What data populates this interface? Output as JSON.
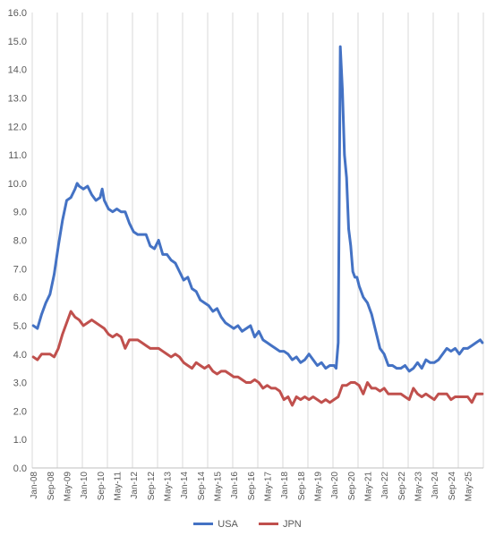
{
  "chart_data": {
    "type": "line",
    "title": "",
    "xlabel": "",
    "ylabel": "",
    "ylim": [
      0,
      16
    ],
    "yticks": [
      "0.0",
      "1.0",
      "2.0",
      "3.0",
      "4.0",
      "5.0",
      "6.0",
      "7.0",
      "8.0",
      "9.0",
      "10.0",
      "11.0",
      "12.0",
      "13.0",
      "14.0",
      "15.0",
      "16.0"
    ],
    "xticks": [
      "Jan-08",
      "Sep-08",
      "May-09",
      "Jan-10",
      "Sep-10",
      "May-11",
      "Jan-12",
      "Sep-12",
      "May-13",
      "Jan-14",
      "Sep-14",
      "May-15",
      "Jan-16",
      "Sep-16",
      "May-17",
      "Jan-18",
      "Sep-18",
      "May-19",
      "Jan-20",
      "Sep-20",
      "May-21",
      "Jan-22",
      "Sep-22",
      "May-23",
      "Jan-24",
      "Sep-24",
      "May-25"
    ],
    "grid": "vertical",
    "legend_position": "bottom",
    "series": [
      {
        "name": "USA",
        "color": "#4472C4",
        "points": [
          [
            "Jan-08",
            5.0
          ],
          [
            "Mar-08",
            4.9
          ],
          [
            "May-08",
            5.4
          ],
          [
            "Jul-08",
            5.8
          ],
          [
            "Sep-08",
            6.1
          ],
          [
            "Nov-08",
            6.8
          ],
          [
            "Jan-09",
            7.8
          ],
          [
            "Mar-09",
            8.7
          ],
          [
            "May-09",
            9.4
          ],
          [
            "Jul-09",
            9.5
          ],
          [
            "Sep-09",
            9.8
          ],
          [
            "Oct-09",
            10.0
          ],
          [
            "Nov-09",
            9.9
          ],
          [
            "Jan-10",
            9.8
          ],
          [
            "Mar-10",
            9.9
          ],
          [
            "May-10",
            9.6
          ],
          [
            "Jul-10",
            9.4
          ],
          [
            "Sep-10",
            9.5
          ],
          [
            "Oct-10",
            9.8
          ],
          [
            "Nov-10",
            9.4
          ],
          [
            "Jan-11",
            9.1
          ],
          [
            "Mar-11",
            9.0
          ],
          [
            "May-11",
            9.1
          ],
          [
            "Jul-11",
            9.0
          ],
          [
            "Sep-11",
            9.0
          ],
          [
            "Nov-11",
            8.6
          ],
          [
            "Jan-12",
            8.3
          ],
          [
            "Mar-12",
            8.2
          ],
          [
            "May-12",
            8.2
          ],
          [
            "Jul-12",
            8.2
          ],
          [
            "Sep-12",
            7.8
          ],
          [
            "Nov-12",
            7.7
          ],
          [
            "Jan-13",
            8.0
          ],
          [
            "Mar-13",
            7.5
          ],
          [
            "May-13",
            7.5
          ],
          [
            "Jul-13",
            7.3
          ],
          [
            "Sep-13",
            7.2
          ],
          [
            "Nov-13",
            6.9
          ],
          [
            "Jan-14",
            6.6
          ],
          [
            "Mar-14",
            6.7
          ],
          [
            "May-14",
            6.3
          ],
          [
            "Jul-14",
            6.2
          ],
          [
            "Sep-14",
            5.9
          ],
          [
            "Nov-14",
            5.8
          ],
          [
            "Jan-15",
            5.7
          ],
          [
            "Mar-15",
            5.5
          ],
          [
            "May-15",
            5.6
          ],
          [
            "Jul-15",
            5.3
          ],
          [
            "Sep-15",
            5.1
          ],
          [
            "Nov-15",
            5.0
          ],
          [
            "Jan-16",
            4.9
          ],
          [
            "Mar-16",
            5.0
          ],
          [
            "May-16",
            4.8
          ],
          [
            "Jul-16",
            4.9
          ],
          [
            "Sep-16",
            5.0
          ],
          [
            "Nov-16",
            4.6
          ],
          [
            "Jan-17",
            4.8
          ],
          [
            "Mar-17",
            4.5
          ],
          [
            "May-17",
            4.4
          ],
          [
            "Jul-17",
            4.3
          ],
          [
            "Sep-17",
            4.2
          ],
          [
            "Nov-17",
            4.1
          ],
          [
            "Jan-18",
            4.1
          ],
          [
            "Mar-18",
            4.0
          ],
          [
            "May-18",
            3.8
          ],
          [
            "Jul-18",
            3.9
          ],
          [
            "Sep-18",
            3.7
          ],
          [
            "Nov-18",
            3.8
          ],
          [
            "Jan-19",
            4.0
          ],
          [
            "Mar-19",
            3.8
          ],
          [
            "May-19",
            3.6
          ],
          [
            "Jul-19",
            3.7
          ],
          [
            "Sep-19",
            3.5
          ],
          [
            "Nov-19",
            3.6
          ],
          [
            "Jan-20",
            3.6
          ],
          [
            "Feb-20",
            3.5
          ],
          [
            "Mar-20",
            4.4
          ],
          [
            "Apr-20",
            14.8
          ],
          [
            "May-20",
            13.3
          ],
          [
            "Jun-20",
            11.0
          ],
          [
            "Jul-20",
            10.2
          ],
          [
            "Aug-20",
            8.4
          ],
          [
            "Sep-20",
            7.8
          ],
          [
            "Oct-20",
            6.9
          ],
          [
            "Nov-20",
            6.7
          ],
          [
            "Dec-20",
            6.7
          ],
          [
            "Jan-21",
            6.4
          ],
          [
            "Mar-21",
            6.0
          ],
          [
            "May-21",
            5.8
          ],
          [
            "Jul-21",
            5.4
          ],
          [
            "Sep-21",
            4.8
          ],
          [
            "Nov-21",
            4.2
          ],
          [
            "Jan-22",
            4.0
          ],
          [
            "Mar-22",
            3.6
          ],
          [
            "May-22",
            3.6
          ],
          [
            "Jul-22",
            3.5
          ],
          [
            "Sep-22",
            3.5
          ],
          [
            "Nov-22",
            3.6
          ],
          [
            "Jan-23",
            3.4
          ],
          [
            "Mar-23",
            3.5
          ],
          [
            "May-23",
            3.7
          ],
          [
            "Jul-23",
            3.5
          ],
          [
            "Sep-23",
            3.8
          ],
          [
            "Nov-23",
            3.7
          ],
          [
            "Jan-24",
            3.7
          ],
          [
            "Mar-24",
            3.8
          ],
          [
            "May-24",
            4.0
          ],
          [
            "Jul-24",
            4.2
          ],
          [
            "Sep-24",
            4.1
          ],
          [
            "Nov-24",
            4.2
          ],
          [
            "Jan-25",
            4.0
          ],
          [
            "Mar-25",
            4.2
          ],
          [
            "May-25",
            4.2
          ],
          [
            "Jul-25",
            4.3
          ],
          [
            "Sep-25",
            4.4
          ],
          [
            "Nov-25",
            4.5
          ],
          [
            "Dec-25",
            4.4
          ]
        ]
      },
      {
        "name": "JPN",
        "color": "#C0504D",
        "points": [
          [
            "Jan-08",
            3.9
          ],
          [
            "Mar-08",
            3.8
          ],
          [
            "May-08",
            4.0
          ],
          [
            "Jul-08",
            4.0
          ],
          [
            "Sep-08",
            4.0
          ],
          [
            "Nov-08",
            3.9
          ],
          [
            "Jan-09",
            4.2
          ],
          [
            "Mar-09",
            4.7
          ],
          [
            "May-09",
            5.1
          ],
          [
            "Jul-09",
            5.5
          ],
          [
            "Sep-09",
            5.3
          ],
          [
            "Nov-09",
            5.2
          ],
          [
            "Jan-10",
            5.0
          ],
          [
            "Mar-10",
            5.1
          ],
          [
            "May-10",
            5.2
          ],
          [
            "Jul-10",
            5.1
          ],
          [
            "Sep-10",
            5.0
          ],
          [
            "Nov-10",
            4.9
          ],
          [
            "Jan-11",
            4.7
          ],
          [
            "Mar-11",
            4.6
          ],
          [
            "May-11",
            4.7
          ],
          [
            "Jul-11",
            4.6
          ],
          [
            "Sep-11",
            4.2
          ],
          [
            "Nov-11",
            4.5
          ],
          [
            "Jan-12",
            4.5
          ],
          [
            "Mar-12",
            4.5
          ],
          [
            "May-12",
            4.4
          ],
          [
            "Jul-12",
            4.3
          ],
          [
            "Sep-12",
            4.2
          ],
          [
            "Nov-12",
            4.2
          ],
          [
            "Jan-13",
            4.2
          ],
          [
            "Mar-13",
            4.1
          ],
          [
            "May-13",
            4.0
          ],
          [
            "Jul-13",
            3.9
          ],
          [
            "Sep-13",
            4.0
          ],
          [
            "Nov-13",
            3.9
          ],
          [
            "Jan-14",
            3.7
          ],
          [
            "Mar-14",
            3.6
          ],
          [
            "May-14",
            3.5
          ],
          [
            "Jul-14",
            3.7
          ],
          [
            "Sep-14",
            3.6
          ],
          [
            "Nov-14",
            3.5
          ],
          [
            "Jan-15",
            3.6
          ],
          [
            "Mar-15",
            3.4
          ],
          [
            "May-15",
            3.3
          ],
          [
            "Jul-15",
            3.4
          ],
          [
            "Sep-15",
            3.4
          ],
          [
            "Nov-15",
            3.3
          ],
          [
            "Jan-16",
            3.2
          ],
          [
            "Mar-16",
            3.2
          ],
          [
            "May-16",
            3.1
          ],
          [
            "Jul-16",
            3.0
          ],
          [
            "Sep-16",
            3.0
          ],
          [
            "Nov-16",
            3.1
          ],
          [
            "Jan-17",
            3.0
          ],
          [
            "Mar-17",
            2.8
          ],
          [
            "May-17",
            2.9
          ],
          [
            "Jul-17",
            2.8
          ],
          [
            "Sep-17",
            2.8
          ],
          [
            "Nov-17",
            2.7
          ],
          [
            "Jan-18",
            2.4
          ],
          [
            "Mar-18",
            2.5
          ],
          [
            "May-18",
            2.2
          ],
          [
            "Jul-18",
            2.5
          ],
          [
            "Sep-18",
            2.4
          ],
          [
            "Nov-18",
            2.5
          ],
          [
            "Jan-19",
            2.4
          ],
          [
            "Mar-19",
            2.5
          ],
          [
            "May-19",
            2.4
          ],
          [
            "Jul-19",
            2.3
          ],
          [
            "Sep-19",
            2.4
          ],
          [
            "Nov-19",
            2.3
          ],
          [
            "Jan-20",
            2.4
          ],
          [
            "Mar-20",
            2.5
          ],
          [
            "May-20",
            2.9
          ],
          [
            "Jul-20",
            2.9
          ],
          [
            "Sep-20",
            3.0
          ],
          [
            "Nov-20",
            3.0
          ],
          [
            "Jan-21",
            2.9
          ],
          [
            "Mar-21",
            2.6
          ],
          [
            "May-21",
            3.0
          ],
          [
            "Jul-21",
            2.8
          ],
          [
            "Sep-21",
            2.8
          ],
          [
            "Nov-21",
            2.7
          ],
          [
            "Jan-22",
            2.8
          ],
          [
            "Mar-22",
            2.6
          ],
          [
            "May-22",
            2.6
          ],
          [
            "Jul-22",
            2.6
          ],
          [
            "Sep-22",
            2.6
          ],
          [
            "Nov-22",
            2.5
          ],
          [
            "Jan-23",
            2.4
          ],
          [
            "Mar-23",
            2.8
          ],
          [
            "May-23",
            2.6
          ],
          [
            "Jul-23",
            2.5
          ],
          [
            "Sep-23",
            2.6
          ],
          [
            "Nov-23",
            2.5
          ],
          [
            "Jan-24",
            2.4
          ],
          [
            "Mar-24",
            2.6
          ],
          [
            "May-24",
            2.6
          ],
          [
            "Jul-24",
            2.6
          ],
          [
            "Sep-24",
            2.4
          ],
          [
            "Nov-24",
            2.5
          ],
          [
            "Jan-25",
            2.5
          ],
          [
            "Mar-25",
            2.5
          ],
          [
            "May-25",
            2.5
          ],
          [
            "Jul-25",
            2.3
          ],
          [
            "Sep-25",
            2.6
          ],
          [
            "Nov-25",
            2.6
          ],
          [
            "Dec-25",
            2.6
          ]
        ]
      }
    ]
  }
}
